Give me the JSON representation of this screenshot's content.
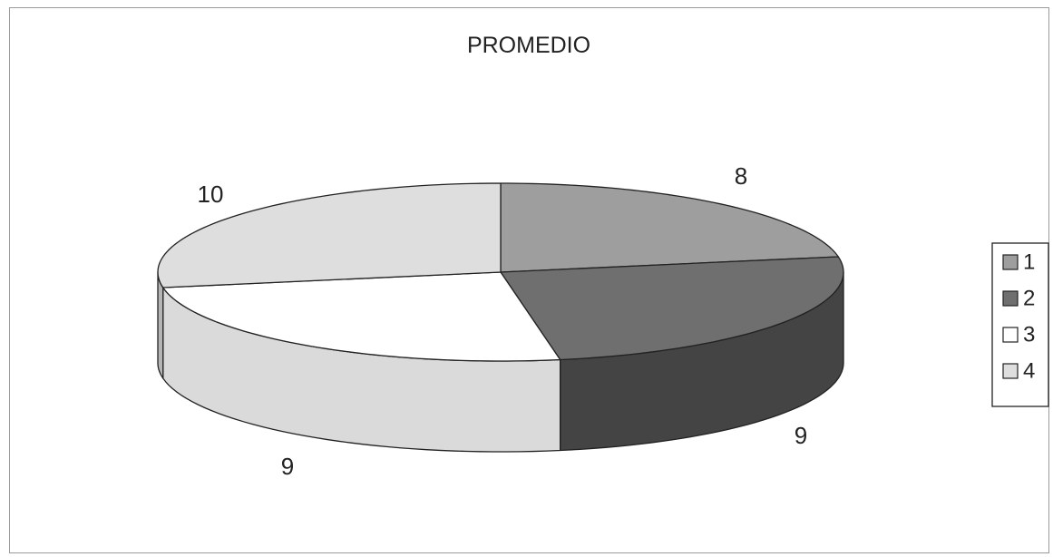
{
  "chart_data": {
    "type": "pie",
    "title": "PROMEDIO",
    "categories": [
      "1",
      "2",
      "3",
      "4"
    ],
    "values": [
      8,
      9,
      9,
      10
    ],
    "data_labels": [
      "8",
      "9",
      "9",
      "10"
    ],
    "colors": {
      "1": "#9e9e9e",
      "2": "#6f6f6f",
      "3": "#ffffff",
      "4": "#dedede"
    },
    "side_colors": {
      "1": "#6f6f6f",
      "2": "#444444",
      "3": "#dadada",
      "4": "#b5b5b5"
    },
    "legend_position": "right",
    "style": "3d"
  }
}
